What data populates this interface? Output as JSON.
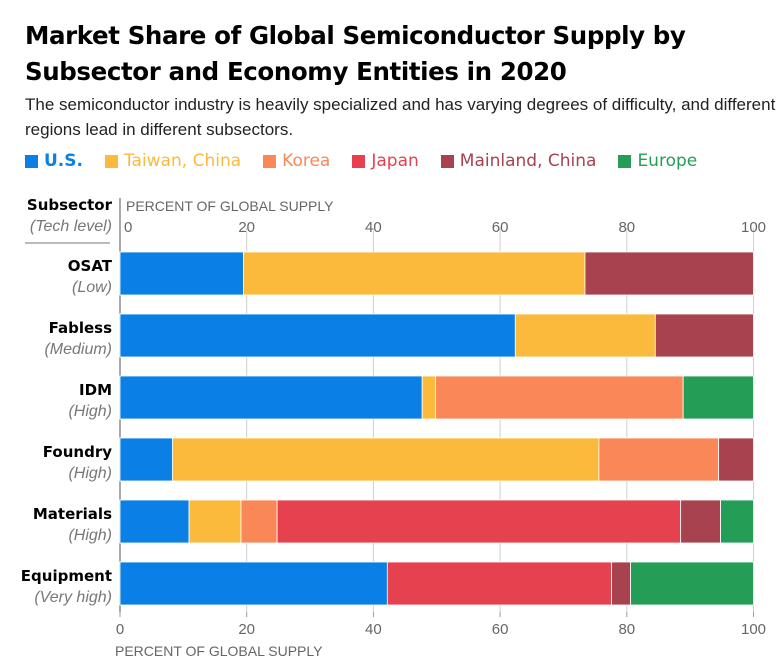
{
  "title": "Market Share of Global Semiconductor Supply by Subsector and Economy Entities in 2020",
  "subtitle": "The semiconductor industry is heavily specialized and has varying degrees of difficulty, and different regions lead in different subsectors.",
  "chart_data": {
    "type": "bar",
    "orientation": "horizontal",
    "stacked": true,
    "title": "Market Share of Global Semiconductor Supply by Subsector and Economy Entities in 2020",
    "subtitle": "The semiconductor industry is heavily specialized and has varying degrees of difficulty, and different regions lead in different subsectors.",
    "xlabel": "PERCENT OF GLOBAL SUPPLY",
    "ylabel": "Subsector",
    "ylabel_sub": "(Tech level)",
    "xlim": [
      0,
      100
    ],
    "xticks": [
      0,
      20,
      40,
      60,
      80,
      100
    ],
    "grid": true,
    "legend_position": "top",
    "categories": [
      "OSAT",
      "Fabless",
      "IDM",
      "Foundry",
      "Materials",
      "Equipment"
    ],
    "category_sublabels": [
      "(Low)",
      "(Medium)",
      "(High)",
      "(High)",
      "(High)",
      "(Very high)"
    ],
    "series": [
      {
        "name": "U.S.",
        "color": "#0a80e6",
        "values": [
          19.5,
          62.4,
          47.7,
          8.3,
          10.9,
          42.2
        ]
      },
      {
        "name": "Taiwan, China",
        "color": "#fbba3c",
        "values": [
          53.9,
          22.1,
          2.1,
          67.3,
          8.2,
          0
        ]
      },
      {
        "name": "Korea",
        "color": "#f98758",
        "values": [
          0,
          0,
          39.1,
          18.9,
          5.7,
          0
        ]
      },
      {
        "name": "Japan",
        "color": "#e6414f",
        "values": [
          0,
          0,
          0,
          0,
          63.7,
          35.4
        ]
      },
      {
        "name": "Mainland, China",
        "color": "#a8424e",
        "values": [
          26.6,
          15.5,
          0,
          5.5,
          6.3,
          3.0
        ]
      },
      {
        "name": "Europe",
        "color": "#249e57",
        "values": [
          0,
          0,
          11.1,
          0,
          5.2,
          19.4
        ]
      }
    ]
  }
}
